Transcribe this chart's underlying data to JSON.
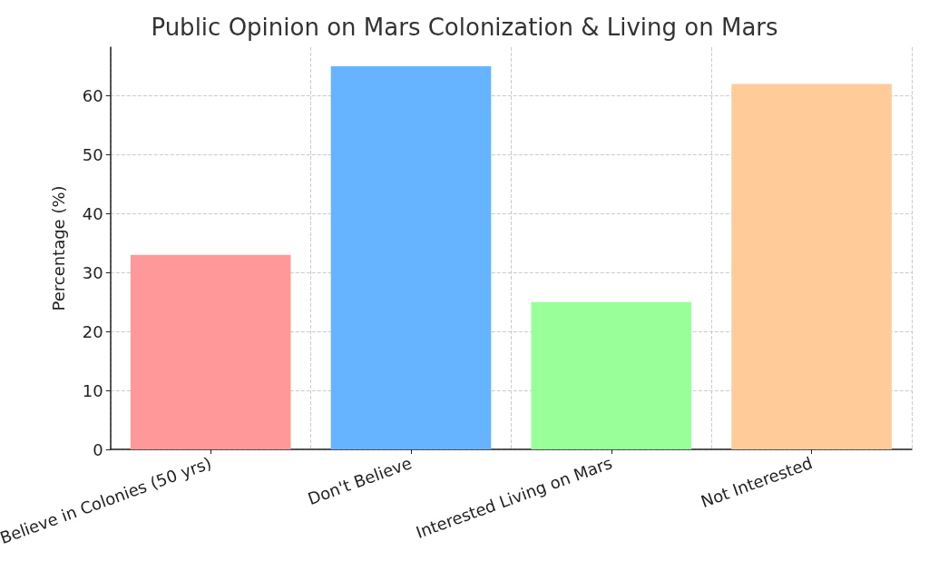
{
  "chart_data": {
    "type": "bar",
    "title": "Public Opinion on Mars Colonization & Living on Mars",
    "ylabel": "Percentage (%)",
    "categories": [
      "Believe in Colonies (50 yrs)",
      "Don't Believe",
      "Interested Living on Mars",
      "Not Interested"
    ],
    "values": [
      33,
      65,
      25,
      62
    ],
    "colors": [
      "#ff9999",
      "#66b3ff",
      "#99ff99",
      "#ffcc99"
    ],
    "ylim": [
      0,
      68.25
    ],
    "yticks": [
      0,
      10,
      20,
      30,
      40,
      50,
      60
    ],
    "grid": true
  }
}
